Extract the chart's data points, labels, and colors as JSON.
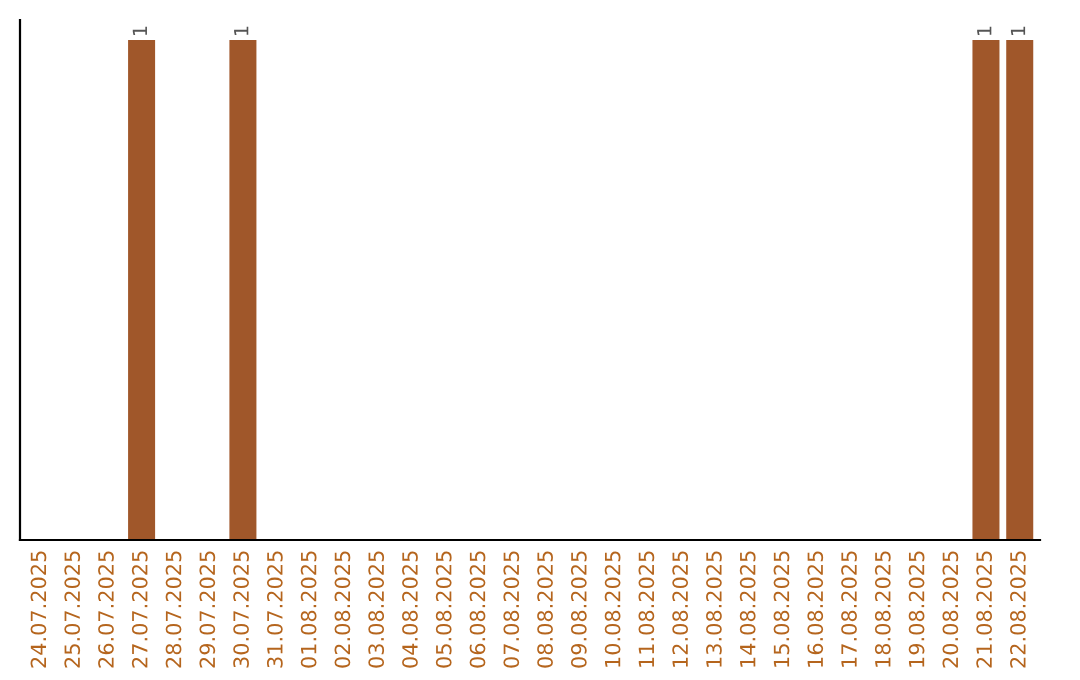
{
  "chart_data": {
    "type": "bar",
    "categories": [
      "24.07.2025",
      "25.07.2025",
      "26.07.2025",
      "27.07.2025",
      "28.07.2025",
      "29.07.2025",
      "30.07.2025",
      "31.07.2025",
      "01.08.2025",
      "02.08.2025",
      "03.08.2025",
      "04.08.2025",
      "05.08.2025",
      "06.08.2025",
      "07.08.2025",
      "08.08.2025",
      "09.08.2025",
      "10.08.2025",
      "11.08.2025",
      "12.08.2025",
      "13.08.2025",
      "14.08.2025",
      "15.08.2025",
      "16.08.2025",
      "17.08.2025",
      "18.08.2025",
      "19.08.2025",
      "20.08.2025",
      "21.08.2025",
      "22.08.2025"
    ],
    "values": [
      0,
      0,
      0,
      1,
      0,
      0,
      1,
      0,
      0,
      0,
      0,
      0,
      0,
      0,
      0,
      0,
      0,
      0,
      0,
      0,
      0,
      0,
      0,
      0,
      0,
      0,
      0,
      0,
      1,
      1
    ],
    "value_labels": [
      null,
      null,
      null,
      "1",
      null,
      null,
      "1",
      null,
      null,
      null,
      null,
      null,
      null,
      null,
      null,
      null,
      null,
      null,
      null,
      null,
      null,
      null,
      null,
      null,
      null,
      null,
      null,
      null,
      "1",
      "1"
    ],
    "color": "#a0572a",
    "tick_labels": "x",
    "grid": false,
    "legend": false
  }
}
